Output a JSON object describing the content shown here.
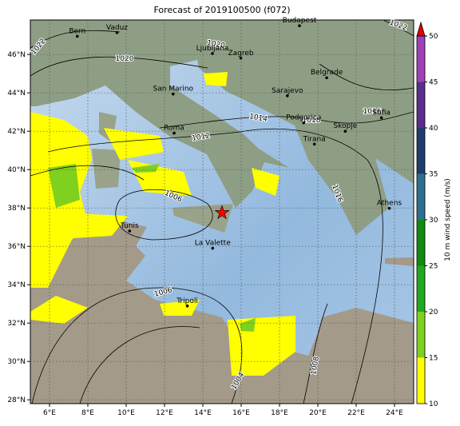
{
  "map": {
    "title": "Forecast of 2019100500 (f072)",
    "xlim": [
      5,
      25
    ],
    "ylim": [
      27.8,
      47.8
    ],
    "xticks": [
      {
        "value": 6,
        "label": "6°E"
      },
      {
        "value": 8,
        "label": "8°E"
      },
      {
        "value": 10,
        "label": "10°E"
      },
      {
        "value": 12,
        "label": "12°E"
      },
      {
        "value": 14,
        "label": "14°E"
      },
      {
        "value": 16,
        "label": "16°E"
      },
      {
        "value": 18,
        "label": "18°E"
      },
      {
        "value": 20,
        "label": "20°E"
      },
      {
        "value": 22,
        "label": "22°E"
      },
      {
        "value": 24,
        "label": "24°E"
      }
    ],
    "yticks": [
      {
        "value": 28,
        "label": "28°N"
      },
      {
        "value": 30,
        "label": "30°N"
      },
      {
        "value": 32,
        "label": "32°N"
      },
      {
        "value": 34,
        "label": "34°N"
      },
      {
        "value": 36,
        "label": "36°N"
      },
      {
        "value": 38,
        "label": "38°N"
      },
      {
        "value": 40,
        "label": "40°N"
      },
      {
        "value": 42,
        "label": "42°N"
      },
      {
        "value": 44,
        "label": "44°N"
      },
      {
        "value": 46,
        "label": "46°N"
      }
    ],
    "grid": true,
    "cities": [
      {
        "name": "Bern",
        "lon": 7.45,
        "lat": 46.95
      },
      {
        "name": "Vaduz",
        "lon": 9.52,
        "lat": 47.14
      },
      {
        "name": "Budapest",
        "lon": 19.04,
        "lat": 47.5
      },
      {
        "name": "Ljubljana",
        "lon": 14.5,
        "lat": 46.05
      },
      {
        "name": "Zagreb",
        "lon": 15.98,
        "lat": 45.81
      },
      {
        "name": "Belgrade",
        "lon": 20.46,
        "lat": 44.79
      },
      {
        "name": "San Marino",
        "lon": 12.45,
        "lat": 43.94
      },
      {
        "name": "Sarajevo",
        "lon": 18.41,
        "lat": 43.85
      },
      {
        "name": "Podgorica",
        "lon": 19.26,
        "lat": 42.44
      },
      {
        "name": "Sofia",
        "lon": 23.32,
        "lat": 42.7
      },
      {
        "name": "Skopje",
        "lon": 21.43,
        "lat": 42.0
      },
      {
        "name": "Roma",
        "lon": 12.5,
        "lat": 41.9
      },
      {
        "name": "Tirana",
        "lon": 19.82,
        "lat": 41.33
      },
      {
        "name": "Athens",
        "lon": 23.73,
        "lat": 37.98
      },
      {
        "name": "Tunis",
        "lon": 10.18,
        "lat": 36.8
      },
      {
        "name": "La Valette",
        "lon": 14.51,
        "lat": 35.9
      },
      {
        "name": "Tripoli",
        "lon": 13.19,
        "lat": 32.89
      }
    ],
    "marker": {
      "lon": 15.0,
      "lat": 37.75,
      "color": "#ff0000"
    },
    "isobar_labels": [
      1022,
      1020,
      1020,
      1022,
      1014,
      1012,
      1006,
      1006,
      1004,
      1008,
      1016,
      1018,
      1016
    ],
    "colorbar": {
      "label": "10 m wind speed (m/s)",
      "lim": [
        10,
        50
      ],
      "ticks": [
        10,
        15,
        20,
        25,
        30,
        35,
        40,
        45,
        50
      ],
      "colors": [
        "#ffff00",
        "#80d020",
        "#20a820",
        "#108a10",
        "#2d6f8e",
        "#1e3c6c",
        "#5a2e8c",
        "#a040b8"
      ],
      "over_color": "#e00000"
    }
  }
}
